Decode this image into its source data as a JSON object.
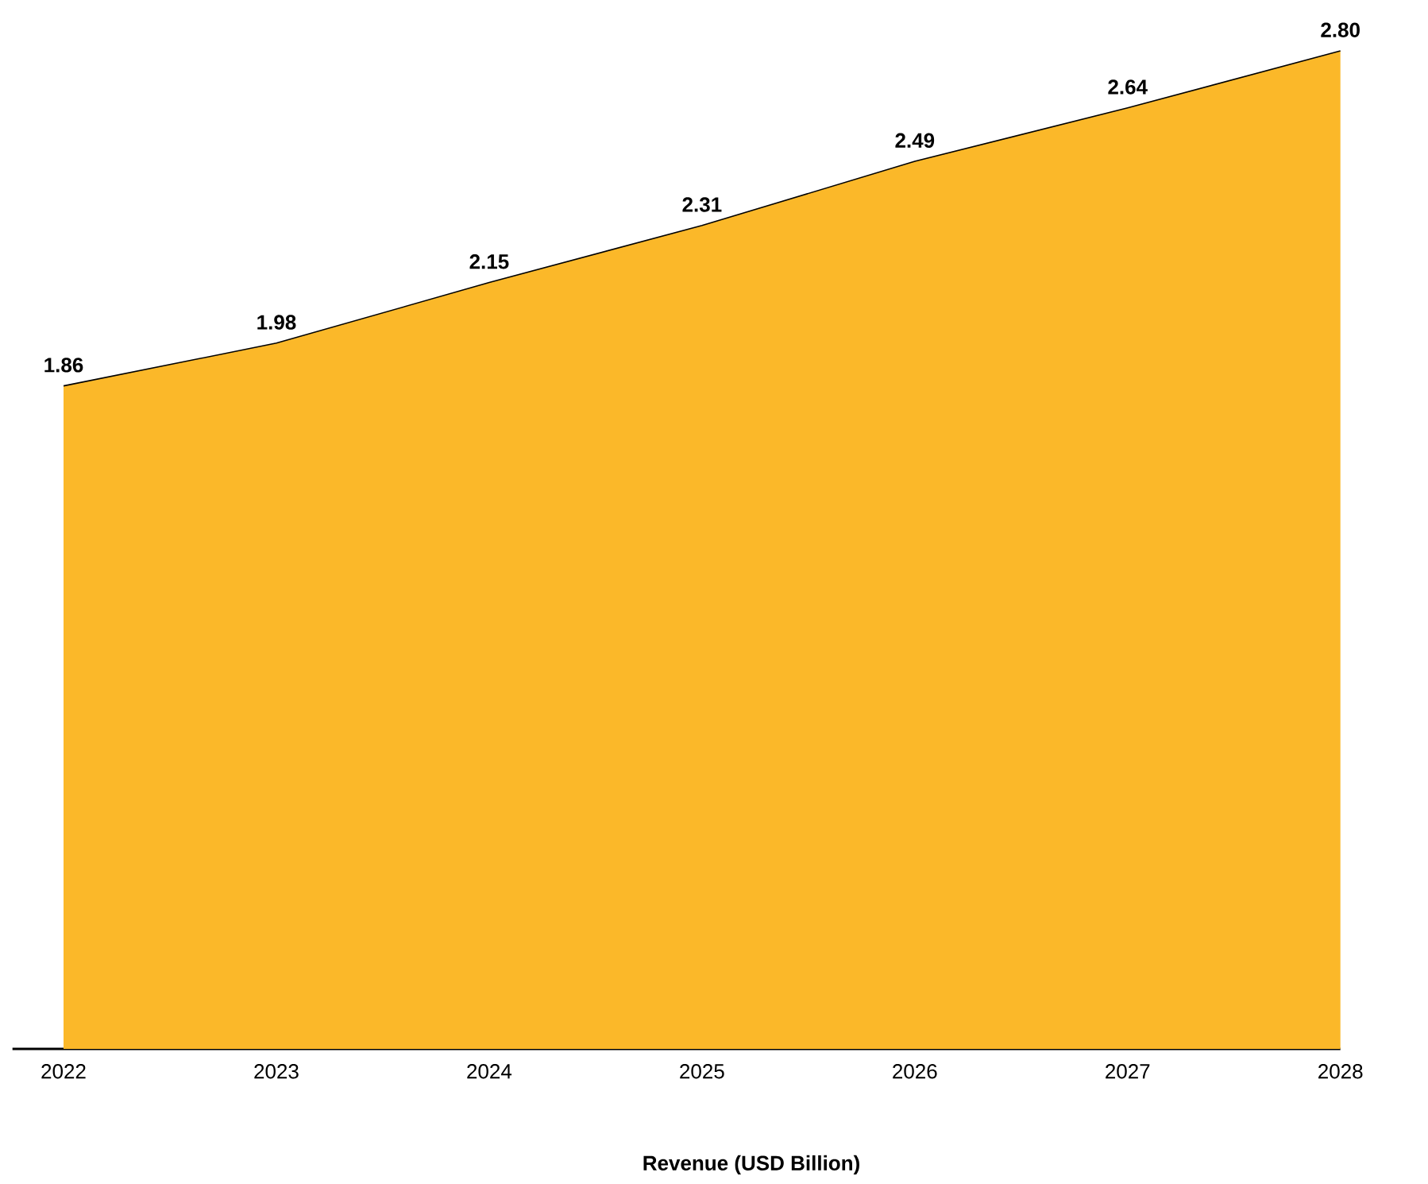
{
  "chart_data": {
    "type": "area",
    "title": "Revenue (USD Billion)",
    "categories": [
      "2022",
      "2023",
      "2024",
      "2025",
      "2026",
      "2027",
      "2028"
    ],
    "values": [
      1.86,
      1.98,
      2.15,
      2.31,
      2.49,
      2.64,
      2.8
    ],
    "value_labels": [
      "1.86",
      "1.98",
      "2.15",
      "2.31",
      "2.49",
      "2.64",
      "2.80"
    ],
    "color": "#fbb829"
  }
}
